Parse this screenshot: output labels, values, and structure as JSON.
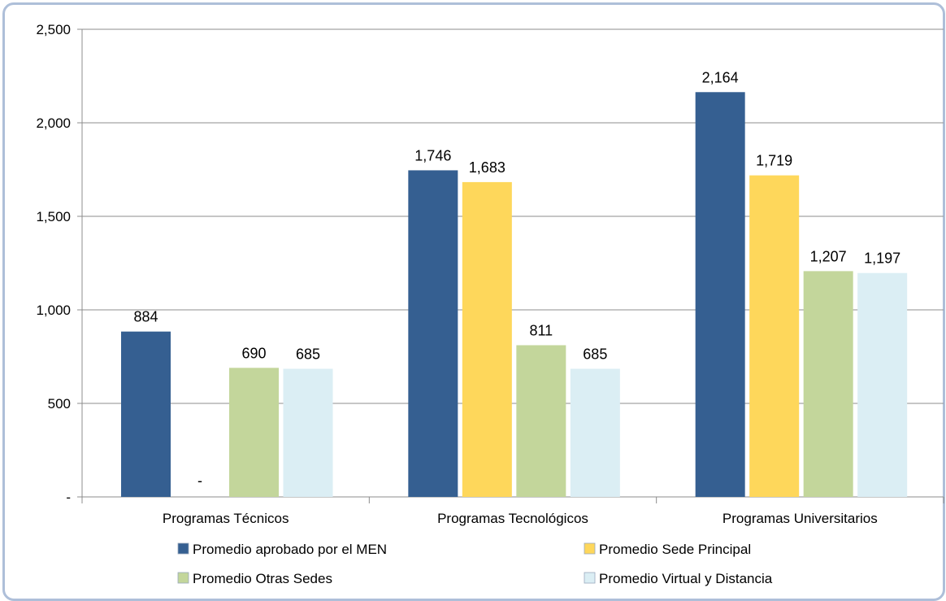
{
  "chart_data": {
    "type": "bar",
    "title": "",
    "xlabel": "",
    "ylabel": "",
    "ylim": [
      0,
      2500
    ],
    "yticks": [
      0,
      500,
      1000,
      1500,
      2000,
      2500
    ],
    "ytick_labels": [
      "-",
      "500",
      "1,000",
      "1,500",
      "2,000",
      "2,500"
    ],
    "grid": "horizontal",
    "legend_position": "bottom",
    "categories": [
      "Programas Técnicos",
      "Programas Tecnológicos",
      "Programas Universitarios"
    ],
    "series": [
      {
        "name": "Promedio aprobado por el MEN",
        "color": "#355f91",
        "values": [
          884,
          1746,
          2164
        ],
        "labels": [
          "884",
          "1,746",
          "2,164"
        ]
      },
      {
        "name": "Promedio Sede Principal",
        "color": "#fed75b",
        "values": [
          0,
          1683,
          1719
        ],
        "labels": [
          "-",
          "1,683",
          "1,719"
        ]
      },
      {
        "name": "Promedio Otras Sedes",
        "color": "#c3d69b",
        "values": [
          690,
          811,
          1207
        ],
        "labels": [
          "690",
          "811",
          "1,207"
        ]
      },
      {
        "name": "Promedio Virtual y Distancia",
        "color": "#dbeef4",
        "values": [
          685,
          685,
          1197
        ],
        "labels": [
          "685",
          "685",
          "1,197"
        ]
      }
    ]
  }
}
